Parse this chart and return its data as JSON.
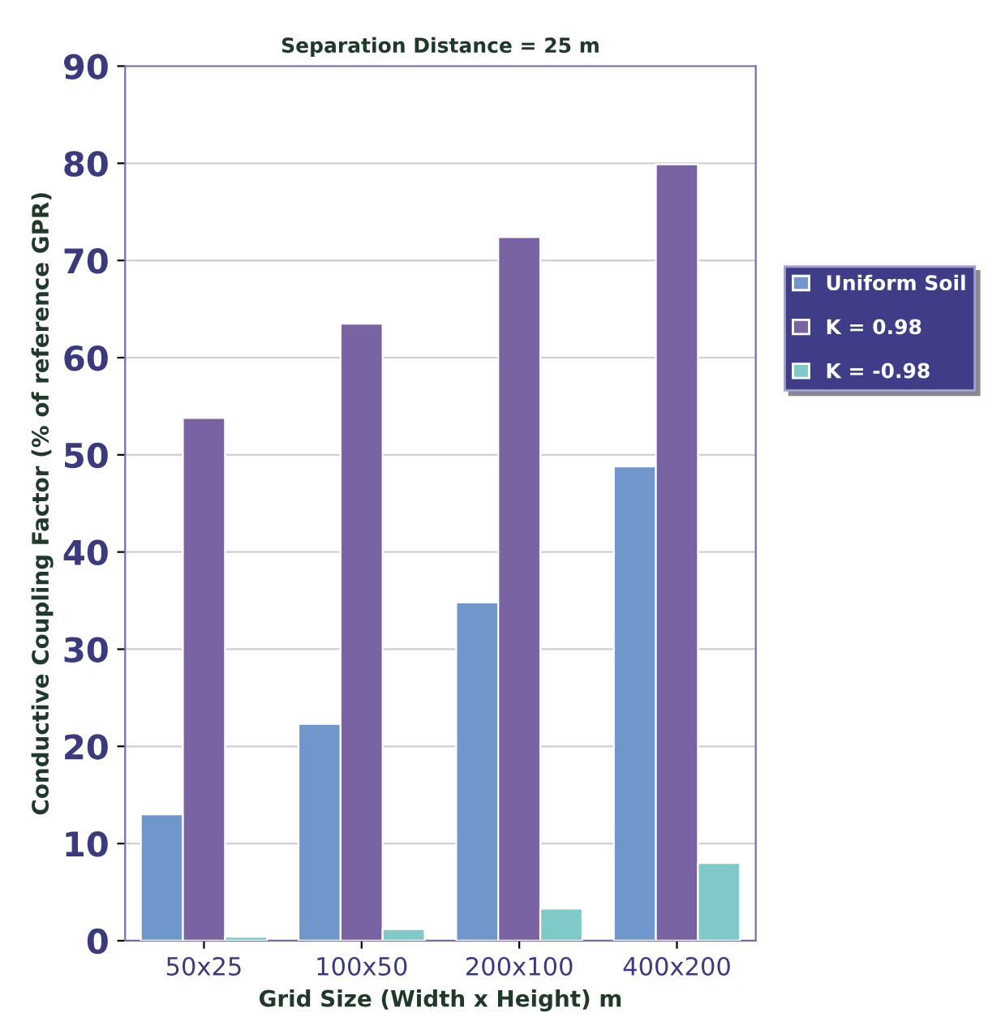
{
  "chart_data": {
    "type": "bar",
    "title": "Separation Distance = 25 m",
    "xlabel": "Grid Size (Width x Height) m",
    "ylabel": "Conductive Coupling Factor (% of reference GPR)",
    "categories": [
      "50x25",
      "100x50",
      "200x100",
      "400x200"
    ],
    "series": [
      {
        "name": "Uniform Soil",
        "color": "#6f97cc",
        "values": [
          13,
          22.3,
          34.8,
          48.8
        ]
      },
      {
        "name": "K = 0.98",
        "color": "#7a63a2",
        "values": [
          53.8,
          63.5,
          72.4,
          79.9
        ]
      },
      {
        "name": "K = -0.98",
        "color": "#7fc9c8",
        "values": [
          0.4,
          1.2,
          3.3,
          8.0
        ]
      }
    ],
    "ylim": [
      0,
      90
    ],
    "yticks": [
      0,
      10,
      20,
      30,
      40,
      50,
      60,
      70,
      80,
      90
    ],
    "grid": "y",
    "legend": "right"
  }
}
